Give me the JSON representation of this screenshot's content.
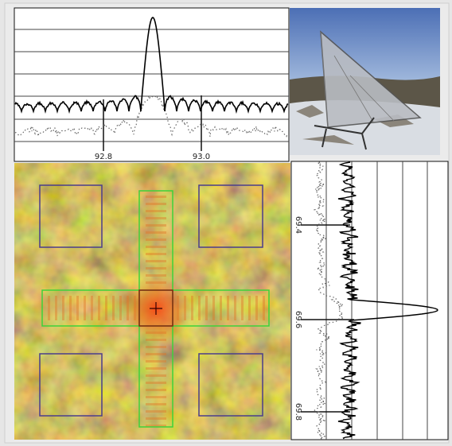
{
  "top_plot": {
    "xtick_labels": [
      "92.8",
      "93.0"
    ]
  },
  "right_plot": {
    "ytick_labels": [
      "69.4",
      "69.6",
      "69.8"
    ]
  }
}
